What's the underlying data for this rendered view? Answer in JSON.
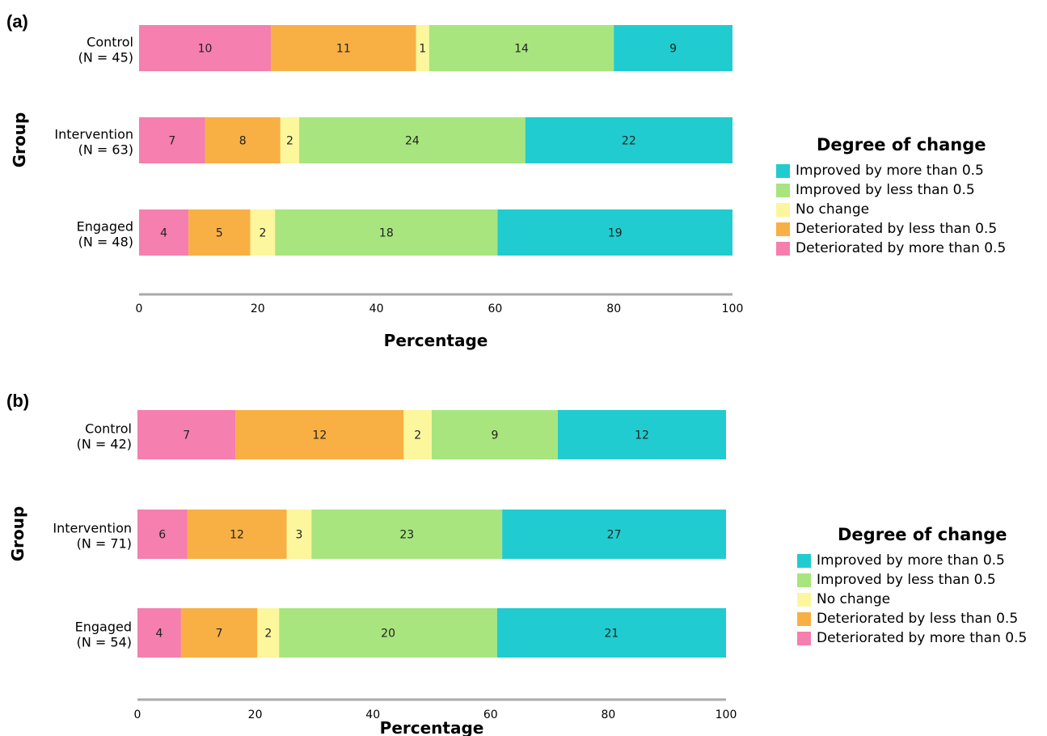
{
  "chart_data": [
    {
      "type": "bar",
      "orientation": "horizontal",
      "stacked": true,
      "panel_label": "(a)",
      "xlabel": "Percentage",
      "ylabel": "Group",
      "xlim": [
        0,
        100
      ],
      "xticks": [
        "0",
        "20",
        "40",
        "60",
        "80",
        "100"
      ],
      "grid": false,
      "legend_position": "right",
      "legend_title": "Degree of change",
      "categories": [
        {
          "line1": "Control",
          "line2": "(N = 45)"
        },
        {
          "line1": "Intervention",
          "line2": "(N = 63)"
        },
        {
          "line1": "Engaged",
          "line2": "(N = 48)"
        }
      ],
      "series": [
        {
          "name": "Deteriorated by more than 0.5",
          "color": "#f57fae",
          "values": [
            10,
            7,
            4
          ]
        },
        {
          "name": "Deteriorated by less than 0.5",
          "color": "#f8b044",
          "values": [
            11,
            8,
            5
          ]
        },
        {
          "name": "No change",
          "color": "#fcf69c",
          "values": [
            1,
            2,
            2
          ]
        },
        {
          "name": "Improved by less than 0.5",
          "color": "#a8e57e",
          "values": [
            14,
            24,
            18
          ]
        },
        {
          "name": "Improved by more than 0.5",
          "color": "#20cccf",
          "values": [
            9,
            22,
            19
          ]
        }
      ],
      "legend_order": [
        4,
        3,
        2,
        1,
        0
      ]
    },
    {
      "type": "bar",
      "orientation": "horizontal",
      "stacked": true,
      "panel_label": "(b)",
      "xlabel": "Percentage",
      "ylabel": "Group",
      "xlim": [
        0,
        100
      ],
      "xticks": [
        "0",
        "20",
        "40",
        "60",
        "80",
        "100"
      ],
      "grid": false,
      "legend_position": "right",
      "legend_title": "Degree of change",
      "categories": [
        {
          "line1": "Control",
          "line2": "(N = 42)"
        },
        {
          "line1": "Intervention",
          "line2": "(N = 71)"
        },
        {
          "line1": "Engaged",
          "line2": "(N = 54)"
        }
      ],
      "series": [
        {
          "name": "Deteriorated by more than 0.5",
          "color": "#f57fae",
          "values": [
            7,
            6,
            4
          ]
        },
        {
          "name": "Deteriorated by less than 0.5",
          "color": "#f8b044",
          "values": [
            12,
            12,
            7
          ]
        },
        {
          "name": "No change",
          "color": "#fcf69c",
          "values": [
            2,
            3,
            2
          ]
        },
        {
          "name": "Improved by less than 0.5",
          "color": "#a8e57e",
          "values": [
            9,
            23,
            20
          ]
        },
        {
          "name": "Improved by more than 0.5",
          "color": "#20cccf",
          "values": [
            12,
            27,
            21
          ]
        }
      ],
      "legend_order": [
        4,
        3,
        2,
        1,
        0
      ]
    }
  ]
}
